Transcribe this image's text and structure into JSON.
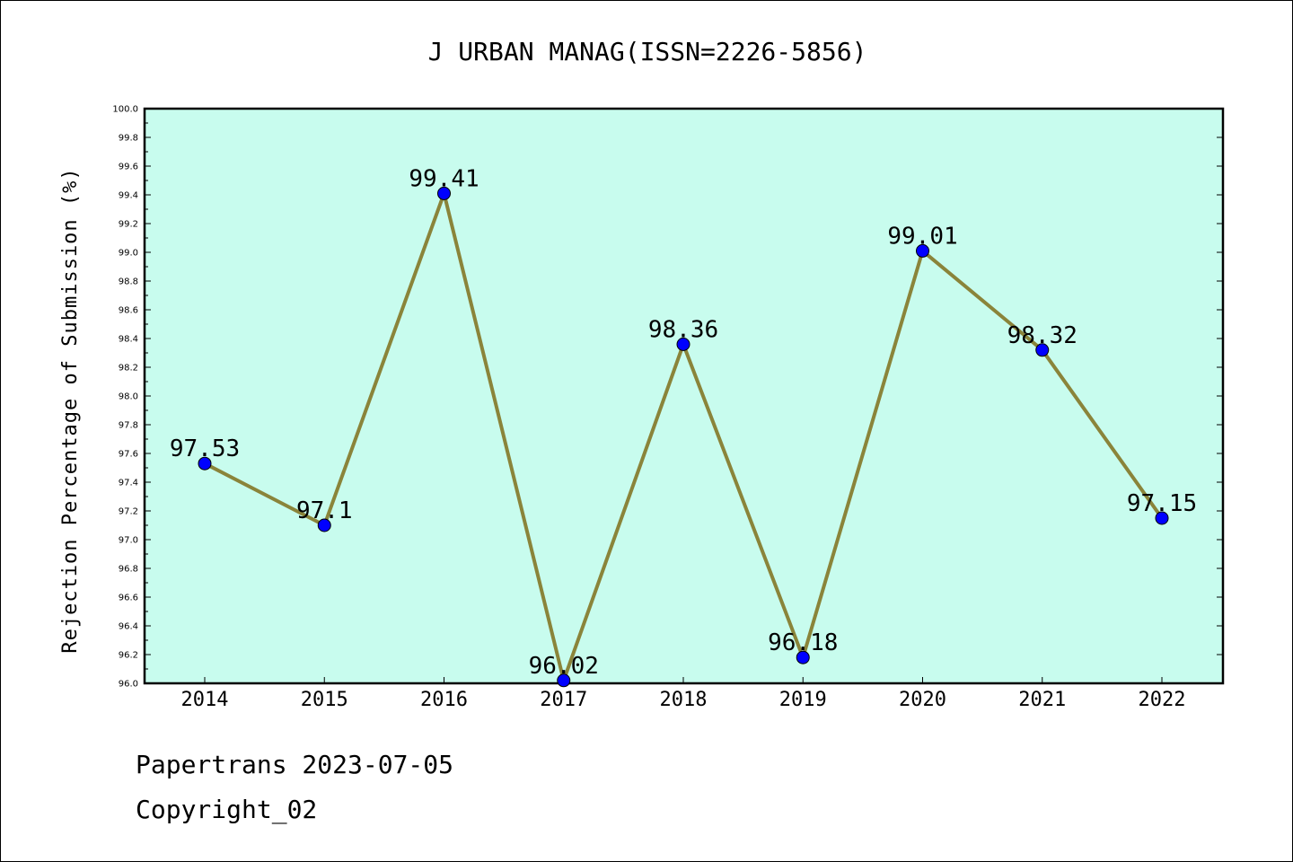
{
  "chart_data": {
    "type": "line",
    "title": "J URBAN MANAG(ISSN=2226-5856)",
    "xlabel": "",
    "ylabel": "Rejection Percentage of Submission (%)",
    "categories": [
      "2014",
      "2015",
      "2016",
      "2017",
      "2018",
      "2019",
      "2020",
      "2021",
      "2022"
    ],
    "values": [
      97.53,
      97.1,
      99.41,
      96.02,
      98.36,
      96.18,
      99.01,
      98.32,
      97.15
    ],
    "point_labels": [
      "97.53",
      "97.1",
      "99.41",
      "96.02",
      "98.36",
      "96.18",
      "99.01",
      "98.32",
      "97.15"
    ],
    "ylim": [
      96.0,
      100.0
    ],
    "yticks": [
      "96.0",
      "96.2",
      "96.4",
      "96.6",
      "96.8",
      "97.0",
      "97.2",
      "97.4",
      "97.6",
      "97.8",
      "98.0",
      "98.2",
      "98.4",
      "98.6",
      "98.8",
      "99.0",
      "99.2",
      "99.4",
      "99.6",
      "99.8",
      "100.0"
    ],
    "grid": false,
    "colors": {
      "plot_background": "#c8fcee",
      "line": "#8a843a",
      "marker": "#0000ff"
    }
  },
  "footer": {
    "line1": "Papertrans 2023-07-05",
    "line2": "Copyright_02"
  }
}
